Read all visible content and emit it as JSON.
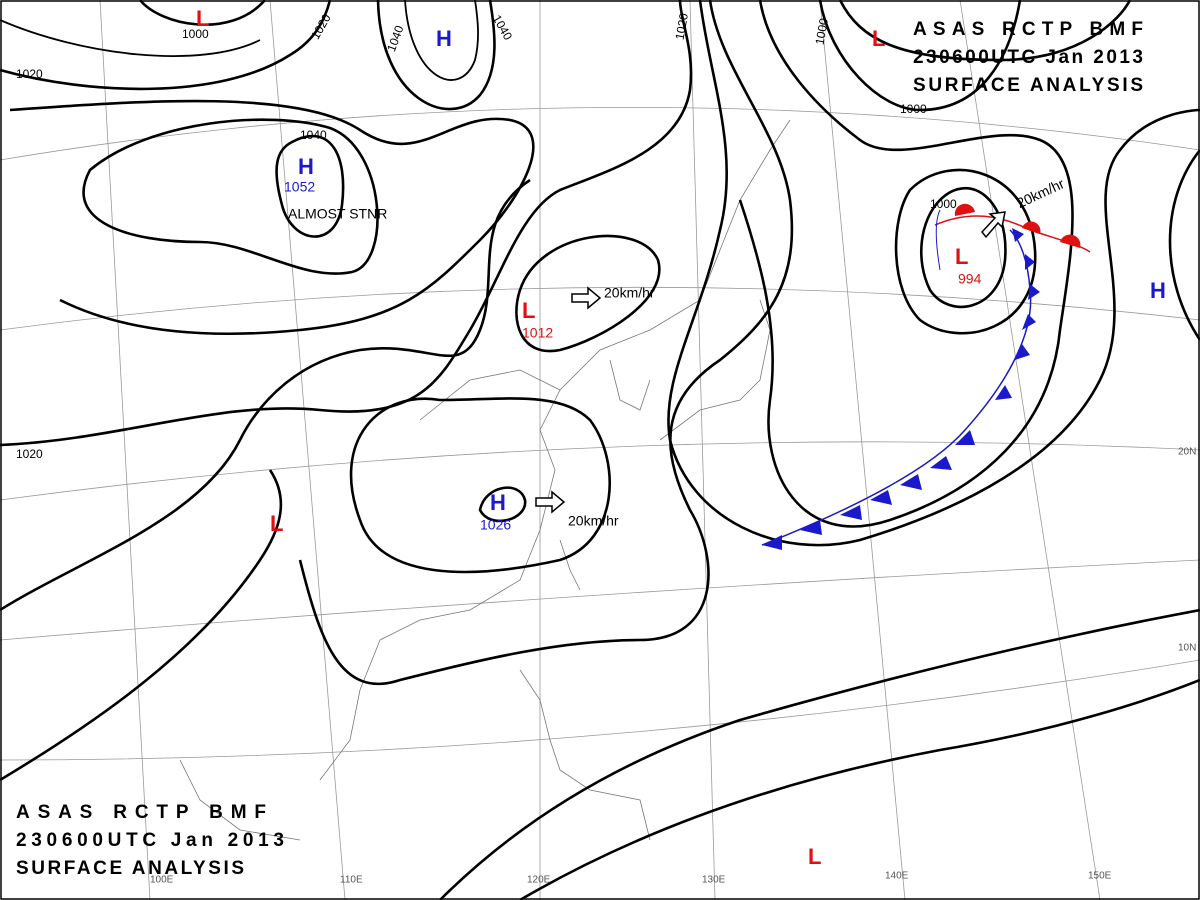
{
  "title": {
    "line1": "ASAS RCTP BMF",
    "line2": "230600UTC Jan 2013",
    "line3": "SURFACE ANALYSIS"
  },
  "systems": [
    {
      "symbol": "H",
      "pressure": 1052,
      "note": "ALMOST STNR"
    },
    {
      "symbol": "L",
      "pressure": 1012,
      "motion": "20km/hr"
    },
    {
      "symbol": "H",
      "pressure": 1026,
      "motion": "20km/hr"
    },
    {
      "symbol": "L",
      "pressure": 994,
      "motion": "20km/hr"
    },
    {
      "symbol": "H"
    },
    {
      "symbol": "L"
    },
    {
      "symbol": "L"
    },
    {
      "symbol": "L"
    },
    {
      "symbol": "L"
    },
    {
      "symbol": "H"
    }
  ],
  "isobar_labels": [
    1000,
    1020,
    1040,
    1040,
    1040,
    1020,
    1020,
    1000,
    1000,
    1000,
    1020
  ],
  "latitudes": [
    "20N",
    "10N"
  ],
  "longitudes": [
    "100E",
    "110E",
    "120E",
    "130E",
    "140E",
    "150E"
  ]
}
